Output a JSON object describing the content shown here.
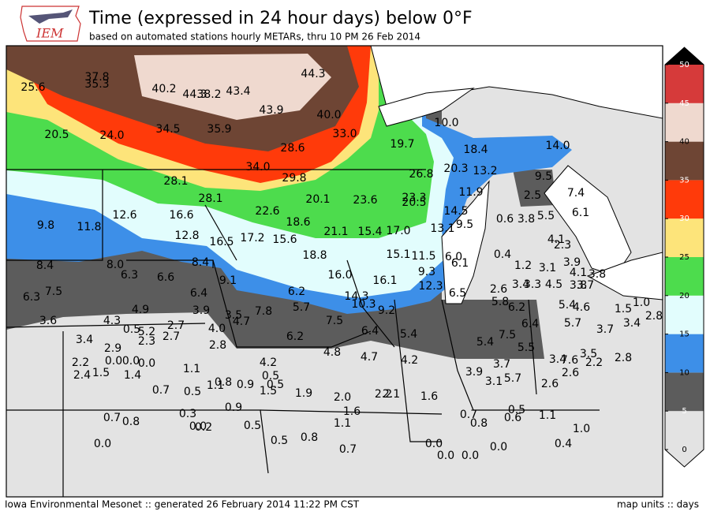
{
  "header": {
    "title": "Time (expressed in 24 hour days) below 0°F",
    "subtitle": "based on automated stations hourly METARs, thru 10 PM 26 Feb 2014",
    "logo": "IEM"
  },
  "map": {
    "values": [
      25.6,
      37.8,
      35.3,
      40.2,
      44.3,
      38.2,
      43.4,
      44.3,
      43.9,
      40.0,
      34.5,
      35.9,
      33.0,
      28.6,
      20.5,
      24.0,
      19.7,
      10.0,
      18.4,
      14.0,
      34.0,
      29.8,
      26.8,
      20.3,
      13.2,
      9.5,
      28.1,
      28.1,
      20.1,
      23.6,
      23.3,
      20.5,
      11.9,
      2.5,
      7.4,
      9.8,
      12.6,
      16.6,
      22.6,
      18.6,
      14.5,
      9.5,
      0.6,
      3.8,
      5.5,
      6.1,
      11.8,
      12.8,
      16.5,
      17.2,
      15.6,
      21.1,
      15.4,
      17.0,
      13.1,
      4.1,
      2.3,
      8.4,
      8.0,
      6.3,
      6.6,
      8.4,
      18.8,
      15.1,
      11.5,
      6.0,
      6.1,
      0.4,
      1.2,
      3.1,
      3.9,
      4.1,
      3.8,
      9.1,
      16.0,
      16.1,
      9.3,
      12.3,
      6.5,
      2.6,
      3.4,
      3.3,
      4.5,
      3.8,
      3.7,
      6.3,
      7.5,
      6.4,
      6.2,
      14.3,
      10.3,
      9.2,
      5.8,
      6.2,
      5.4,
      4.6,
      1.5,
      1.0,
      4.9,
      3.9,
      3.5,
      4.7,
      7.8,
      5.7,
      3.6,
      4.3,
      0.5,
      5.2,
      2.7,
      2.7,
      2.3,
      4.0,
      7.5,
      6.4,
      5.7,
      3.7,
      3.4,
      2.8,
      3.4,
      6.2,
      6.4,
      5.4,
      5.4,
      7.5,
      5.5,
      2.8,
      2.9,
      4.8,
      4.7,
      4.2,
      3.4,
      7.6,
      3.5,
      2.2,
      2.8,
      2.2,
      0.0,
      0.0,
      0.0,
      4.2,
      2.4,
      1.5,
      1.4,
      1.1,
      0.5,
      0.5,
      3.9,
      3.7,
      5.7,
      3.1,
      2.6,
      2.6,
      0.7,
      0.5,
      1.1,
      0.8,
      0.9,
      1.5,
      1.9,
      2.0,
      2.2,
      2.1,
      1.6,
      0.9,
      0.3,
      1.6,
      0.7,
      0.8,
      0.0,
      0.2,
      0.5,
      1.1,
      0.7,
      0.8,
      0.5,
      0.6,
      1.1,
      1.0,
      0.5,
      0.8,
      0.0,
      0.0,
      0.7,
      0.0,
      0.0,
      0.0,
      0.4
    ],
    "value_labels": [
      "25.6",
      "37.8",
      "35.3",
      "40.2",
      "44.3",
      "38.2",
      "43.4",
      "44.3",
      "43.9",
      "40.0",
      "34.5",
      "35.9",
      "33.0",
      "28.6",
      "20.5",
      "24.0",
      "19.7",
      "10.0",
      "18.4",
      "14.0",
      "34.0",
      "29.8",
      "26.8",
      "20.3",
      "13.2",
      "9.5",
      "28.1",
      "28.1",
      "20.1",
      "23.6",
      "23.3",
      "20.5",
      "11.9",
      "2.5",
      "7.4",
      "9.8",
      "12.6",
      "16.6",
      "22.6",
      "18.6",
      "14.5",
      "9.5",
      "0.6",
      "3.8",
      "5.5",
      "6.1",
      "11.8",
      "12.8",
      "16.5",
      "17.2",
      "15.6",
      "21.1",
      "15.4",
      "17.0",
      "13.1",
      "4.1",
      "2.3",
      "8.4",
      "8.0",
      "6.3",
      "6.6",
      "8.4",
      "18.8",
      "15.1",
      "11.5",
      "6.0",
      "6.1",
      "0.4",
      "1.2",
      "3.1",
      "3.9",
      "4.1",
      "3.8",
      "9.1",
      "16.0",
      "16.1",
      "9.3",
      "12.3",
      "6.5",
      "2.6",
      "3.4",
      "3.3",
      "4.5",
      "3.8",
      "3.7",
      "6.3",
      "7.5",
      "6.4",
      "6.2",
      "14.3",
      "10.3",
      "9.2",
      "5.8",
      "6.2",
      "5.4",
      "4.6",
      "1.5",
      "1.0",
      "4.9",
      "3.9",
      "3.5",
      "4.7",
      "7.8",
      "5.7",
      "3.6",
      "4.3",
      "0.5",
      "5.2",
      "2.7",
      "2.7",
      "2.3",
      "4.0",
      "7.5",
      "6.4",
      "5.7",
      "3.7",
      "3.4",
      "2.8",
      "3.4",
      "6.2",
      "6.4",
      "5.4",
      "5.4",
      "7.5",
      "5.5",
      "2.8",
      "2.9",
      "4.8",
      "4.7",
      "4.2",
      "3.4",
      "7.6",
      "3.5",
      "2.2",
      "2.8",
      "2.2",
      "0.0",
      "0.0",
      "0.0",
      "4.2",
      "2.4",
      "1.5",
      "1.4",
      "1.1",
      "0.5",
      "0.5",
      "3.9",
      "3.7",
      "5.7",
      "3.1",
      "2.6",
      "2.6",
      "0.7",
      "0.5",
      "1.1",
      "0.8",
      "0.9",
      "1.5",
      "1.9",
      "2.0",
      "2.2",
      "2.1",
      "1.6",
      "0.9",
      "0.3",
      "1.6",
      "0.7",
      "0.8",
      "0.0",
      "0.2",
      "0.5",
      "1.1",
      "0.7",
      "0.8",
      "0.5",
      "0.6",
      "1.1",
      "1.0",
      "0.5",
      "0.8",
      "0.0",
      "0.0",
      "0.7",
      "0.0",
      "0.0",
      "0.0",
      "0.4"
    ]
  },
  "colorbar": {
    "ticks": [
      0,
      5,
      10,
      15,
      20,
      25,
      30,
      35,
      40,
      45,
      50
    ],
    "colors": [
      "#e3e3e3",
      "#5c5c5c",
      "#3d8fe8",
      "#e2fdfd",
      "#4ddc4d",
      "#fde47a",
      "#ff3a0a",
      "#6e4534",
      "#efd9cf",
      "#d63a3a"
    ],
    "over_color": "#000000"
  },
  "footer": {
    "left": "Iowa Environmental Mesonet :: generated 26 February 2014 11:22 PM CST",
    "right": "map units :: days"
  }
}
